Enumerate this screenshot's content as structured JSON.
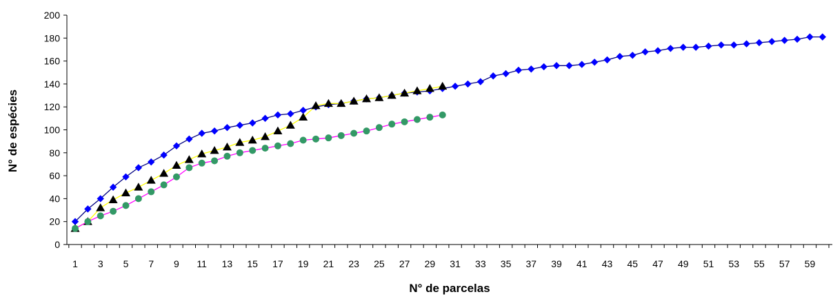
{
  "chart_data": {
    "type": "line",
    "title": "",
    "xlabel": "N° de parcelas",
    "ylabel": "N° de espécies",
    "ylim": [
      0,
      200
    ],
    "yticks": [
      0,
      20,
      40,
      60,
      80,
      100,
      120,
      140,
      160,
      180,
      200
    ],
    "xlim": [
      1,
      60
    ],
    "xtick_labels": [
      "1",
      "3",
      "5",
      "7",
      "9",
      "11",
      "13",
      "15",
      "17",
      "19",
      "21",
      "23",
      "25",
      "27",
      "29",
      "31",
      "33",
      "35",
      "37",
      "39",
      "41",
      "43",
      "45",
      "47",
      "49",
      "51",
      "53",
      "55",
      "57",
      "59"
    ],
    "grid": false,
    "legend": "none",
    "series": [
      {
        "marker": "diamond",
        "marker_color": "#0000ff",
        "line_color": "#000080",
        "x": [
          1,
          2,
          3,
          4,
          5,
          6,
          7,
          8,
          9,
          10,
          11,
          12,
          13,
          14,
          15,
          16,
          17,
          18,
          19,
          20,
          21,
          22,
          23,
          24,
          25,
          26,
          27,
          28,
          29,
          30,
          31,
          32,
          33,
          34,
          35,
          36,
          37,
          38,
          39,
          40,
          41,
          42,
          43,
          44,
          45,
          46,
          47,
          48,
          49,
          50,
          51,
          52,
          53,
          54,
          55,
          56,
          57,
          58,
          59,
          60
        ],
        "values": [
          20,
          31,
          40,
          50,
          59,
          67,
          72,
          78,
          86,
          92,
          97,
          99,
          102,
          104,
          106,
          110,
          113,
          114,
          117,
          120,
          122,
          123,
          125,
          127,
          128,
          130,
          132,
          133,
          134,
          136,
          138,
          140,
          142,
          147,
          149,
          152,
          153,
          155,
          156,
          156,
          157,
          159,
          161,
          164,
          165,
          168,
          169,
          171,
          172,
          172,
          173,
          174,
          174,
          175,
          176,
          177,
          178,
          179,
          181,
          181
        ]
      },
      {
        "marker": "triangle",
        "marker_color": "#000000",
        "line_color": "#ffff00",
        "x": [
          1,
          2,
          3,
          4,
          5,
          6,
          7,
          8,
          9,
          10,
          11,
          12,
          13,
          14,
          15,
          16,
          17,
          18,
          19,
          20,
          21,
          22,
          23,
          24,
          25,
          26,
          27,
          28,
          29,
          30
        ],
        "values": [
          14,
          20,
          32,
          39,
          45,
          50,
          56,
          62,
          69,
          74,
          79,
          82,
          85,
          89,
          91,
          94,
          99,
          104,
          111,
          121,
          123,
          123,
          125,
          127,
          128,
          130,
          132,
          134,
          136,
          138
        ]
      },
      {
        "marker": "circle",
        "marker_color": "#339966",
        "line_color": "#ff00ff",
        "x": [
          1,
          2,
          3,
          4,
          5,
          6,
          7,
          8,
          9,
          10,
          11,
          12,
          13,
          14,
          15,
          16,
          17,
          18,
          19,
          20,
          21,
          22,
          23,
          24,
          25,
          26,
          27,
          28,
          29,
          30
        ],
        "values": [
          14,
          20,
          25,
          29,
          34,
          40,
          46,
          52,
          59,
          67,
          71,
          73,
          77,
          80,
          82,
          84,
          86,
          88,
          91,
          92,
          93,
          95,
          97,
          99,
          102,
          105,
          107,
          109,
          111,
          113
        ]
      }
    ]
  }
}
